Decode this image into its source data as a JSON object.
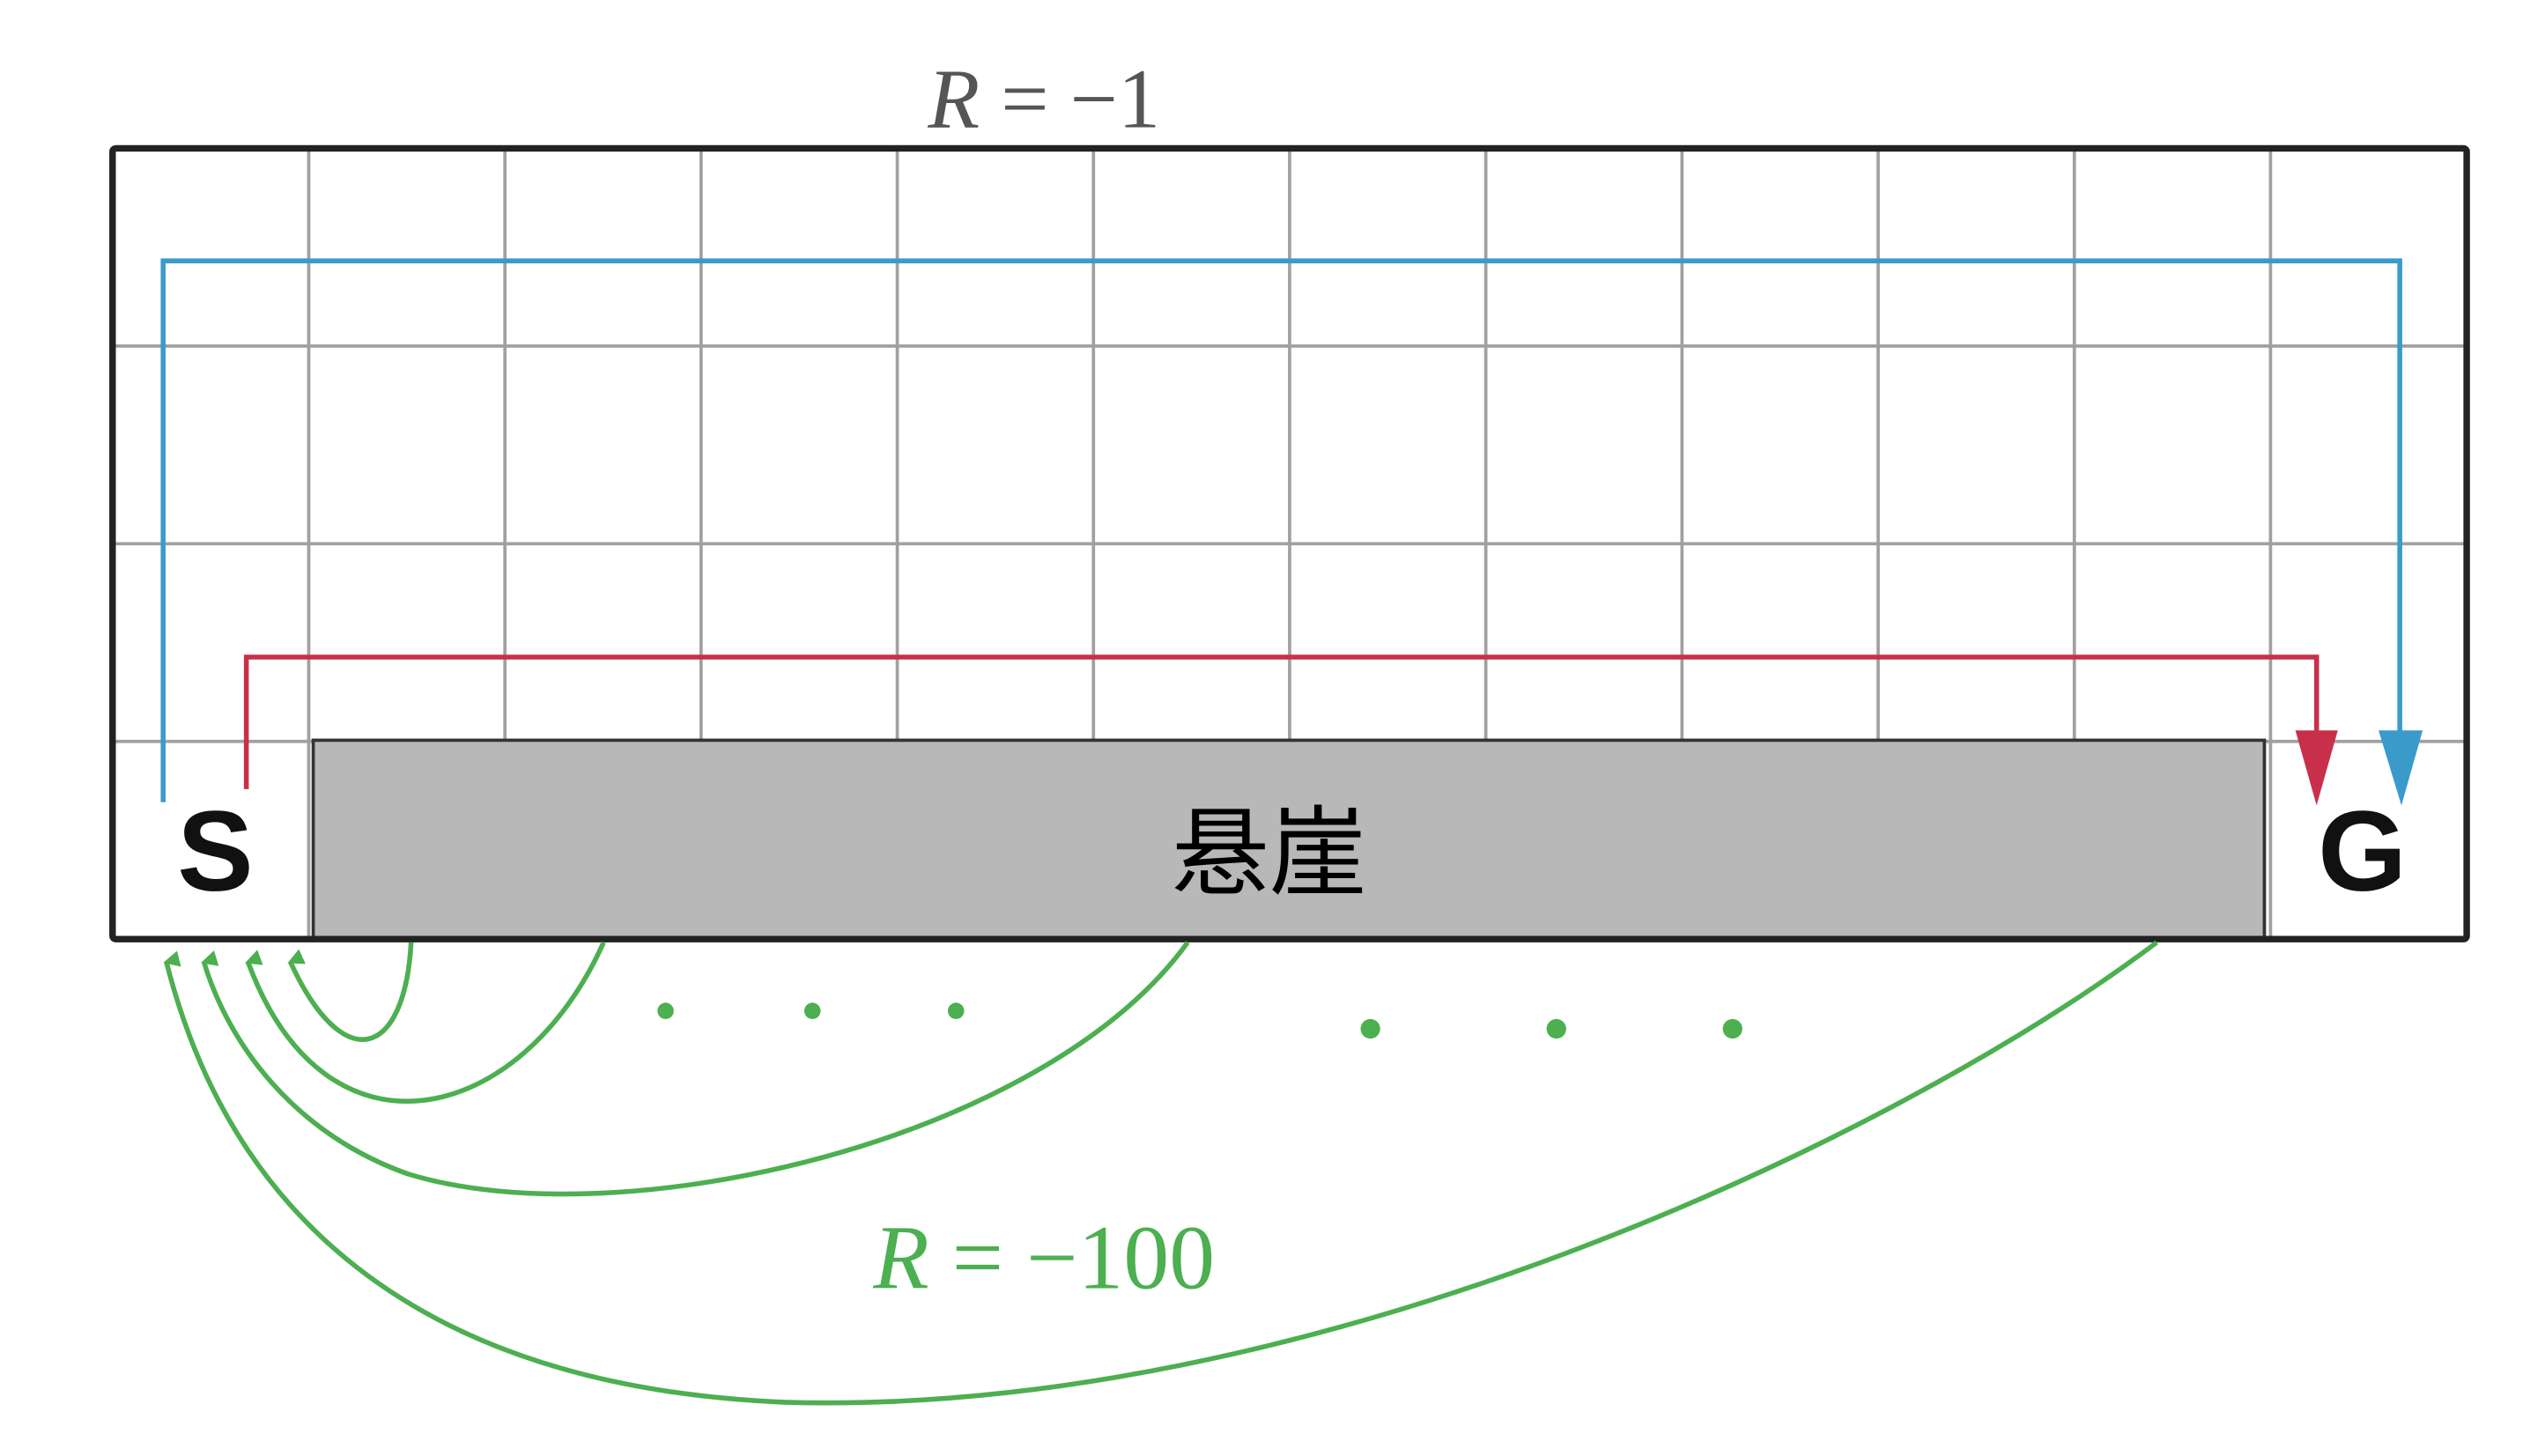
{
  "top_reward": {
    "var": "R",
    "eq": " = ",
    "value": "−1"
  },
  "bottom_reward": {
    "var": "R",
    "eq": " = ",
    "value": "−100"
  },
  "start_label": "S",
  "goal_label": "G",
  "cliff_label": "悬崖",
  "grid": {
    "columns": 12,
    "rows": 4
  },
  "colors": {
    "safe_path": "#3a9bcb",
    "optimal_path": "#c8304a",
    "fall_arrows": "#4caf50",
    "cliff_fill": "#b8b8b8",
    "grid_lines": "#a0a0a0",
    "border": "#222222"
  }
}
